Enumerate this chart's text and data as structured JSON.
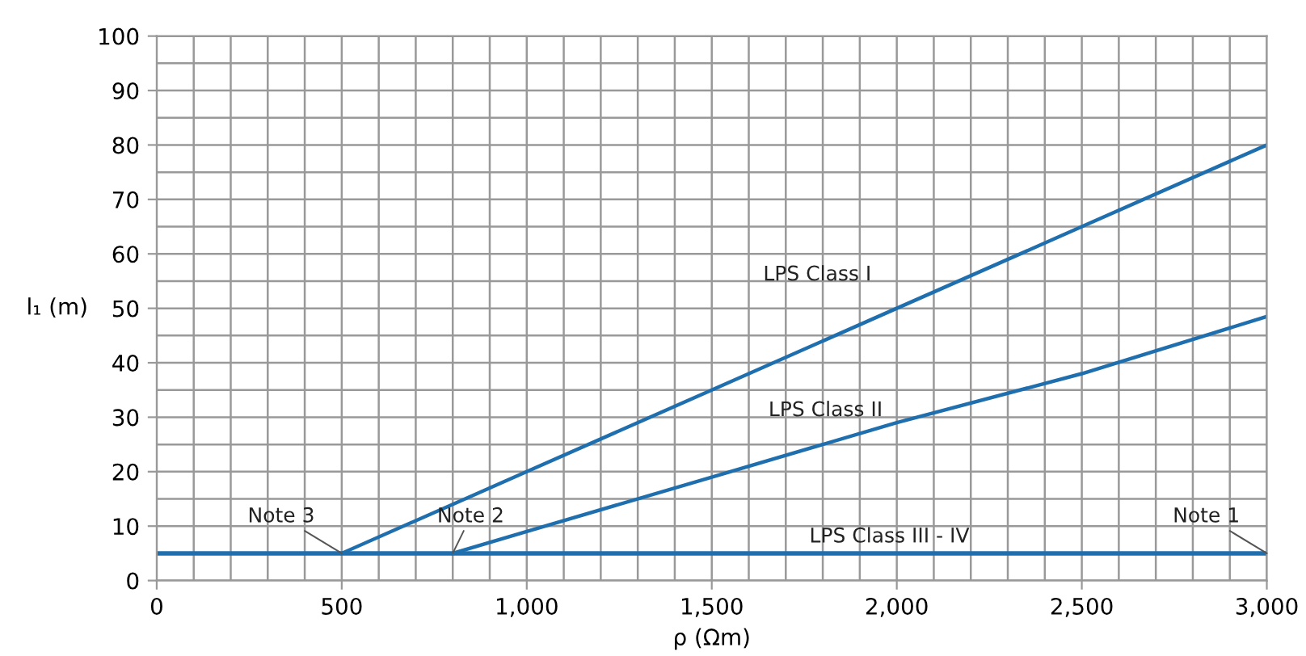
{
  "chart_data": {
    "type": "line",
    "xlabel": "ρ (Ωm)",
    "ylabel": "l₁ (m)",
    "xlim": [
      0,
      3000
    ],
    "ylim": [
      0,
      100
    ],
    "xticks": [
      0,
      500,
      {
        "value": 1000,
        "label": "1,000"
      },
      {
        "value": 1500,
        "label": "1,500"
      },
      {
        "value": 2000,
        "label": "2,000"
      },
      {
        "value": 2500,
        "label": "2,500"
      },
      {
        "value": 3000,
        "label": "3,000"
      }
    ],
    "yticks": [
      0,
      10,
      20,
      30,
      40,
      50,
      60,
      70,
      80,
      90,
      100
    ],
    "grid": true,
    "legend": false,
    "marker": "none",
    "line_style": "solid",
    "series": [
      {
        "name": "LPS Class I",
        "color": "#1f6fae",
        "x": [
          500,
          1000,
          1500,
          2000,
          2500,
          3000
        ],
        "values": [
          5,
          20,
          35,
          50,
          65,
          80
        ]
      },
      {
        "name": "LPS Class II",
        "color": "#1f6fae",
        "x": [
          800,
          1000,
          1500,
          2000,
          2500,
          3000
        ],
        "values": [
          5,
          9,
          19,
          29,
          38,
          48.5
        ]
      },
      {
        "name": "LPS Class III - IV",
        "color": "#1f6fae",
        "x": [
          0,
          3000
        ],
        "values": [
          5,
          5
        ]
      }
    ],
    "annotations": [
      {
        "text": "Note 3",
        "x": 500,
        "y": 5
      },
      {
        "text": "Note 2",
        "x": 800,
        "y": 5
      },
      {
        "text": "Note 1",
        "x": 3000,
        "y": 5
      }
    ]
  }
}
